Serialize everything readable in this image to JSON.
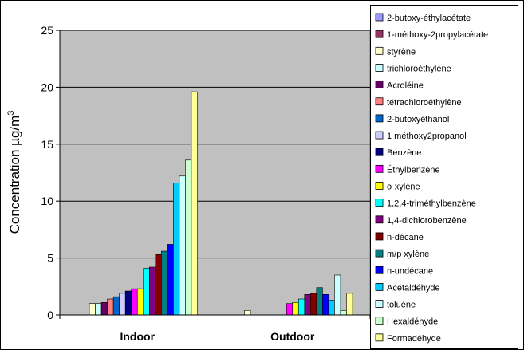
{
  "chart_data": {
    "type": "bar",
    "categories": [
      "Indoor",
      "Outdoor"
    ],
    "ylabel": "Concentration µg/m³",
    "ylabel_main": "Concentration µg/m",
    "ylabel_sup": "3",
    "xlabel": "",
    "ylim": [
      0,
      25
    ],
    "yticks": [
      0,
      5,
      10,
      15,
      20,
      25
    ],
    "grid": true,
    "plot_background": "#c0c0c0",
    "legend_position": "right",
    "series": [
      {
        "name": "2-butoxy-éthylacétate",
        "color": "#9999ff",
        "values": [
          0,
          0
        ]
      },
      {
        "name": "1-méthoxy-2propylacétate",
        "color": "#993366",
        "values": [
          0,
          0
        ]
      },
      {
        "name": "styrène",
        "color": "#ffffcc",
        "values": [
          1.0,
          0.4
        ]
      },
      {
        "name": "trichloroéthylène",
        "color": "#ccffff",
        "values": [
          1.0,
          0
        ]
      },
      {
        "name": "Acroléine",
        "color": "#660066",
        "values": [
          1.1,
          0
        ]
      },
      {
        "name": "tétrachloroéthylène",
        "color": "#ff8080",
        "values": [
          1.4,
          0
        ]
      },
      {
        "name": "2-butoxyéthanol",
        "color": "#0066cc",
        "values": [
          1.6,
          0
        ]
      },
      {
        "name": "1 méthoxy2propanol",
        "color": "#ccccff",
        "values": [
          1.9,
          0
        ]
      },
      {
        "name": "Benzène",
        "color": "#000080",
        "values": [
          2.1,
          0
        ]
      },
      {
        "name": "Éthylbenzène",
        "color": "#ff00ff",
        "values": [
          2.3,
          1.0
        ]
      },
      {
        "name": "o-xylène",
        "color": "#ffff00",
        "values": [
          2.3,
          1.1
        ]
      },
      {
        "name": "1,2,4-triméthylbenzène",
        "color": "#00ffff",
        "values": [
          4.1,
          1.4
        ]
      },
      {
        "name": "1,4-dichlorobenzène",
        "color": "#800080",
        "values": [
          4.2,
          1.8
        ]
      },
      {
        "name": "n-décane",
        "color": "#800000",
        "values": [
          5.3,
          1.9
        ]
      },
      {
        "name": "m/p xylène",
        "color": "#008080",
        "values": [
          5.6,
          2.4
        ]
      },
      {
        "name": "n-undécane",
        "color": "#0000ff",
        "values": [
          6.2,
          1.8
        ]
      },
      {
        "name": "Acétaldéhyde",
        "color": "#00ccff",
        "values": [
          11.6,
          1.3
        ]
      },
      {
        "name": "toluène",
        "color": "#ccffff",
        "values": [
          12.2,
          3.5
        ]
      },
      {
        "name": "Hexaldéhyde",
        "color": "#ccffcc",
        "values": [
          13.6,
          0.4
        ]
      },
      {
        "name": "Formadéhyde",
        "color": "#ffff99",
        "values": [
          19.6,
          1.9
        ]
      }
    ]
  }
}
